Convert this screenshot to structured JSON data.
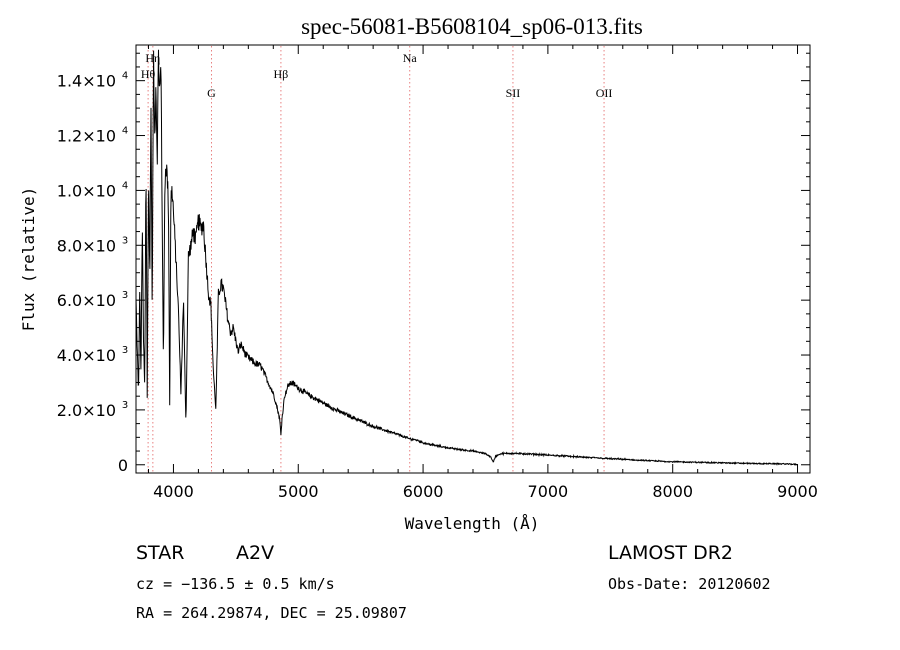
{
  "chart_data": {
    "type": "line",
    "title": "spec-56081-B5608104_sp06-013.fits",
    "xlabel": "Wavelength (Å)",
    "ylabel": "Flux (relative)",
    "xlim": [
      3700,
      9100
    ],
    "ylim": [
      -300,
      15300
    ],
    "grid": false,
    "x_ticks": [
      {
        "value": 4000,
        "label": "4000"
      },
      {
        "value": 5000,
        "label": "5000"
      },
      {
        "value": 6000,
        "label": "6000"
      },
      {
        "value": 7000,
        "label": "7000"
      },
      {
        "value": 8000,
        "label": "8000"
      },
      {
        "value": 9000,
        "label": "9000"
      }
    ],
    "y_ticks": [
      {
        "value": 0,
        "mantissa": "0",
        "exponent": ""
      },
      {
        "value": 2000,
        "mantissa": "2.0×10",
        "exponent": "3"
      },
      {
        "value": 4000,
        "mantissa": "4.0×10",
        "exponent": "3"
      },
      {
        "value": 6000,
        "mantissa": "6.0×10",
        "exponent": "3"
      },
      {
        "value": 8000,
        "mantissa": "8.0×10",
        "exponent": "3"
      },
      {
        "value": 10000,
        "mantissa": "1.0×10",
        "exponent": "4"
      },
      {
        "value": 12000,
        "mantissa": "1.2×10",
        "exponent": "4"
      },
      {
        "value": 14000,
        "mantissa": "1.4×10",
        "exponent": "4"
      }
    ],
    "annotations": [
      {
        "label": "Hη",
        "x": 3835,
        "row": "top",
        "color": "#000000"
      },
      {
        "label": "Hθ",
        "x": 3797,
        "row": "second",
        "color": "#000000"
      },
      {
        "label": "G",
        "x": 4305,
        "row": "third",
        "color": "#000000"
      },
      {
        "label": "Hβ",
        "x": 4861,
        "row": "second",
        "color": "#000000"
      },
      {
        "label": "Na",
        "x": 5893,
        "row": "top",
        "color": "#000000"
      },
      {
        "label": "SII",
        "x": 6720,
        "row": "third",
        "color": "#000000"
      },
      {
        "label": "OII",
        "x": 7450,
        "row": "third",
        "color": "#000000"
      }
    ],
    "line_markers": [
      3797,
      3835,
      4305,
      4861,
      5893,
      6720,
      7450
    ],
    "marker_color": "#e88080",
    "series": [
      {
        "color": "#000000",
        "x": [
          3700,
          3720,
          3730,
          3740,
          3750,
          3760,
          3770,
          3780,
          3790,
          3800,
          3810,
          3820,
          3830,
          3840,
          3850,
          3860,
          3870,
          3880,
          3890,
          3900,
          3910,
          3920,
          3930,
          3940,
          3950,
          3960,
          3970,
          3980,
          3990,
          4000,
          4020,
          4040,
          4060,
          4080,
          4100,
          4120,
          4140,
          4160,
          4180,
          4200,
          4220,
          4240,
          4260,
          4280,
          4300,
          4320,
          4340,
          4360,
          4380,
          4400,
          4420,
          4440,
          4460,
          4480,
          4500,
          4520,
          4540,
          4560,
          4580,
          4600,
          4650,
          4700,
          4750,
          4800,
          4830,
          4850,
          4861,
          4870,
          4890,
          4920,
          4950,
          5000,
          5100,
          5200,
          5300,
          5400,
          5500,
          5600,
          5700,
          5800,
          5890,
          5950,
          6000,
          6100,
          6200,
          6300,
          6400,
          6500,
          6540,
          6563,
          6580,
          6620,
          6700,
          6800,
          6900,
          7000,
          7100,
          7200,
          7300,
          7400,
          7500,
          7600,
          7700,
          7800,
          7900,
          8000,
          8100,
          8200,
          8300,
          8400,
          8500,
          8600,
          8700,
          8800,
          8900,
          8950,
          9000
        ],
        "y": [
          6000,
          2500,
          6500,
          3000,
          9000,
          4500,
          2800,
          11000,
          2500,
          10500,
          6800,
          13000,
          5500,
          14800,
          12000,
          14000,
          11000,
          15000,
          13500,
          14500,
          9000,
          3500,
          10000,
          11000,
          10500,
          9500,
          2200,
          9800,
          10000,
          9200,
          7500,
          5600,
          2600,
          6000,
          1500,
          7600,
          8000,
          8500,
          8200,
          8900,
          8600,
          8800,
          7500,
          6300,
          5800,
          3400,
          2000,
          6200,
          6600,
          6400,
          5800,
          5200,
          4800,
          5000,
          4500,
          4100,
          4400,
          4200,
          4000,
          3900,
          3700,
          3600,
          3100,
          2600,
          2100,
          1700,
          1100,
          1700,
          2500,
          2900,
          3000,
          2800,
          2500,
          2250,
          2000,
          1800,
          1600,
          1400,
          1250,
          1100,
          950,
          900,
          800,
          700,
          620,
          550,
          500,
          400,
          300,
          100,
          300,
          400,
          420,
          400,
          380,
          350,
          330,
          300,
          270,
          250,
          220,
          200,
          170,
          150,
          130,
          110,
          100,
          90,
          80,
          70,
          60,
          50,
          40,
          40,
          30,
          20,
          10
        ]
      }
    ]
  },
  "info": {
    "object_class": "STAR",
    "subclass": "A2V",
    "cz": "cz = −136.5 ± 0.5 km/s",
    "coords": "RA = 264.29874, DEC =  25.09807",
    "survey": "LAMOST DR2",
    "obs_date": "Obs-Date: 20120602"
  }
}
